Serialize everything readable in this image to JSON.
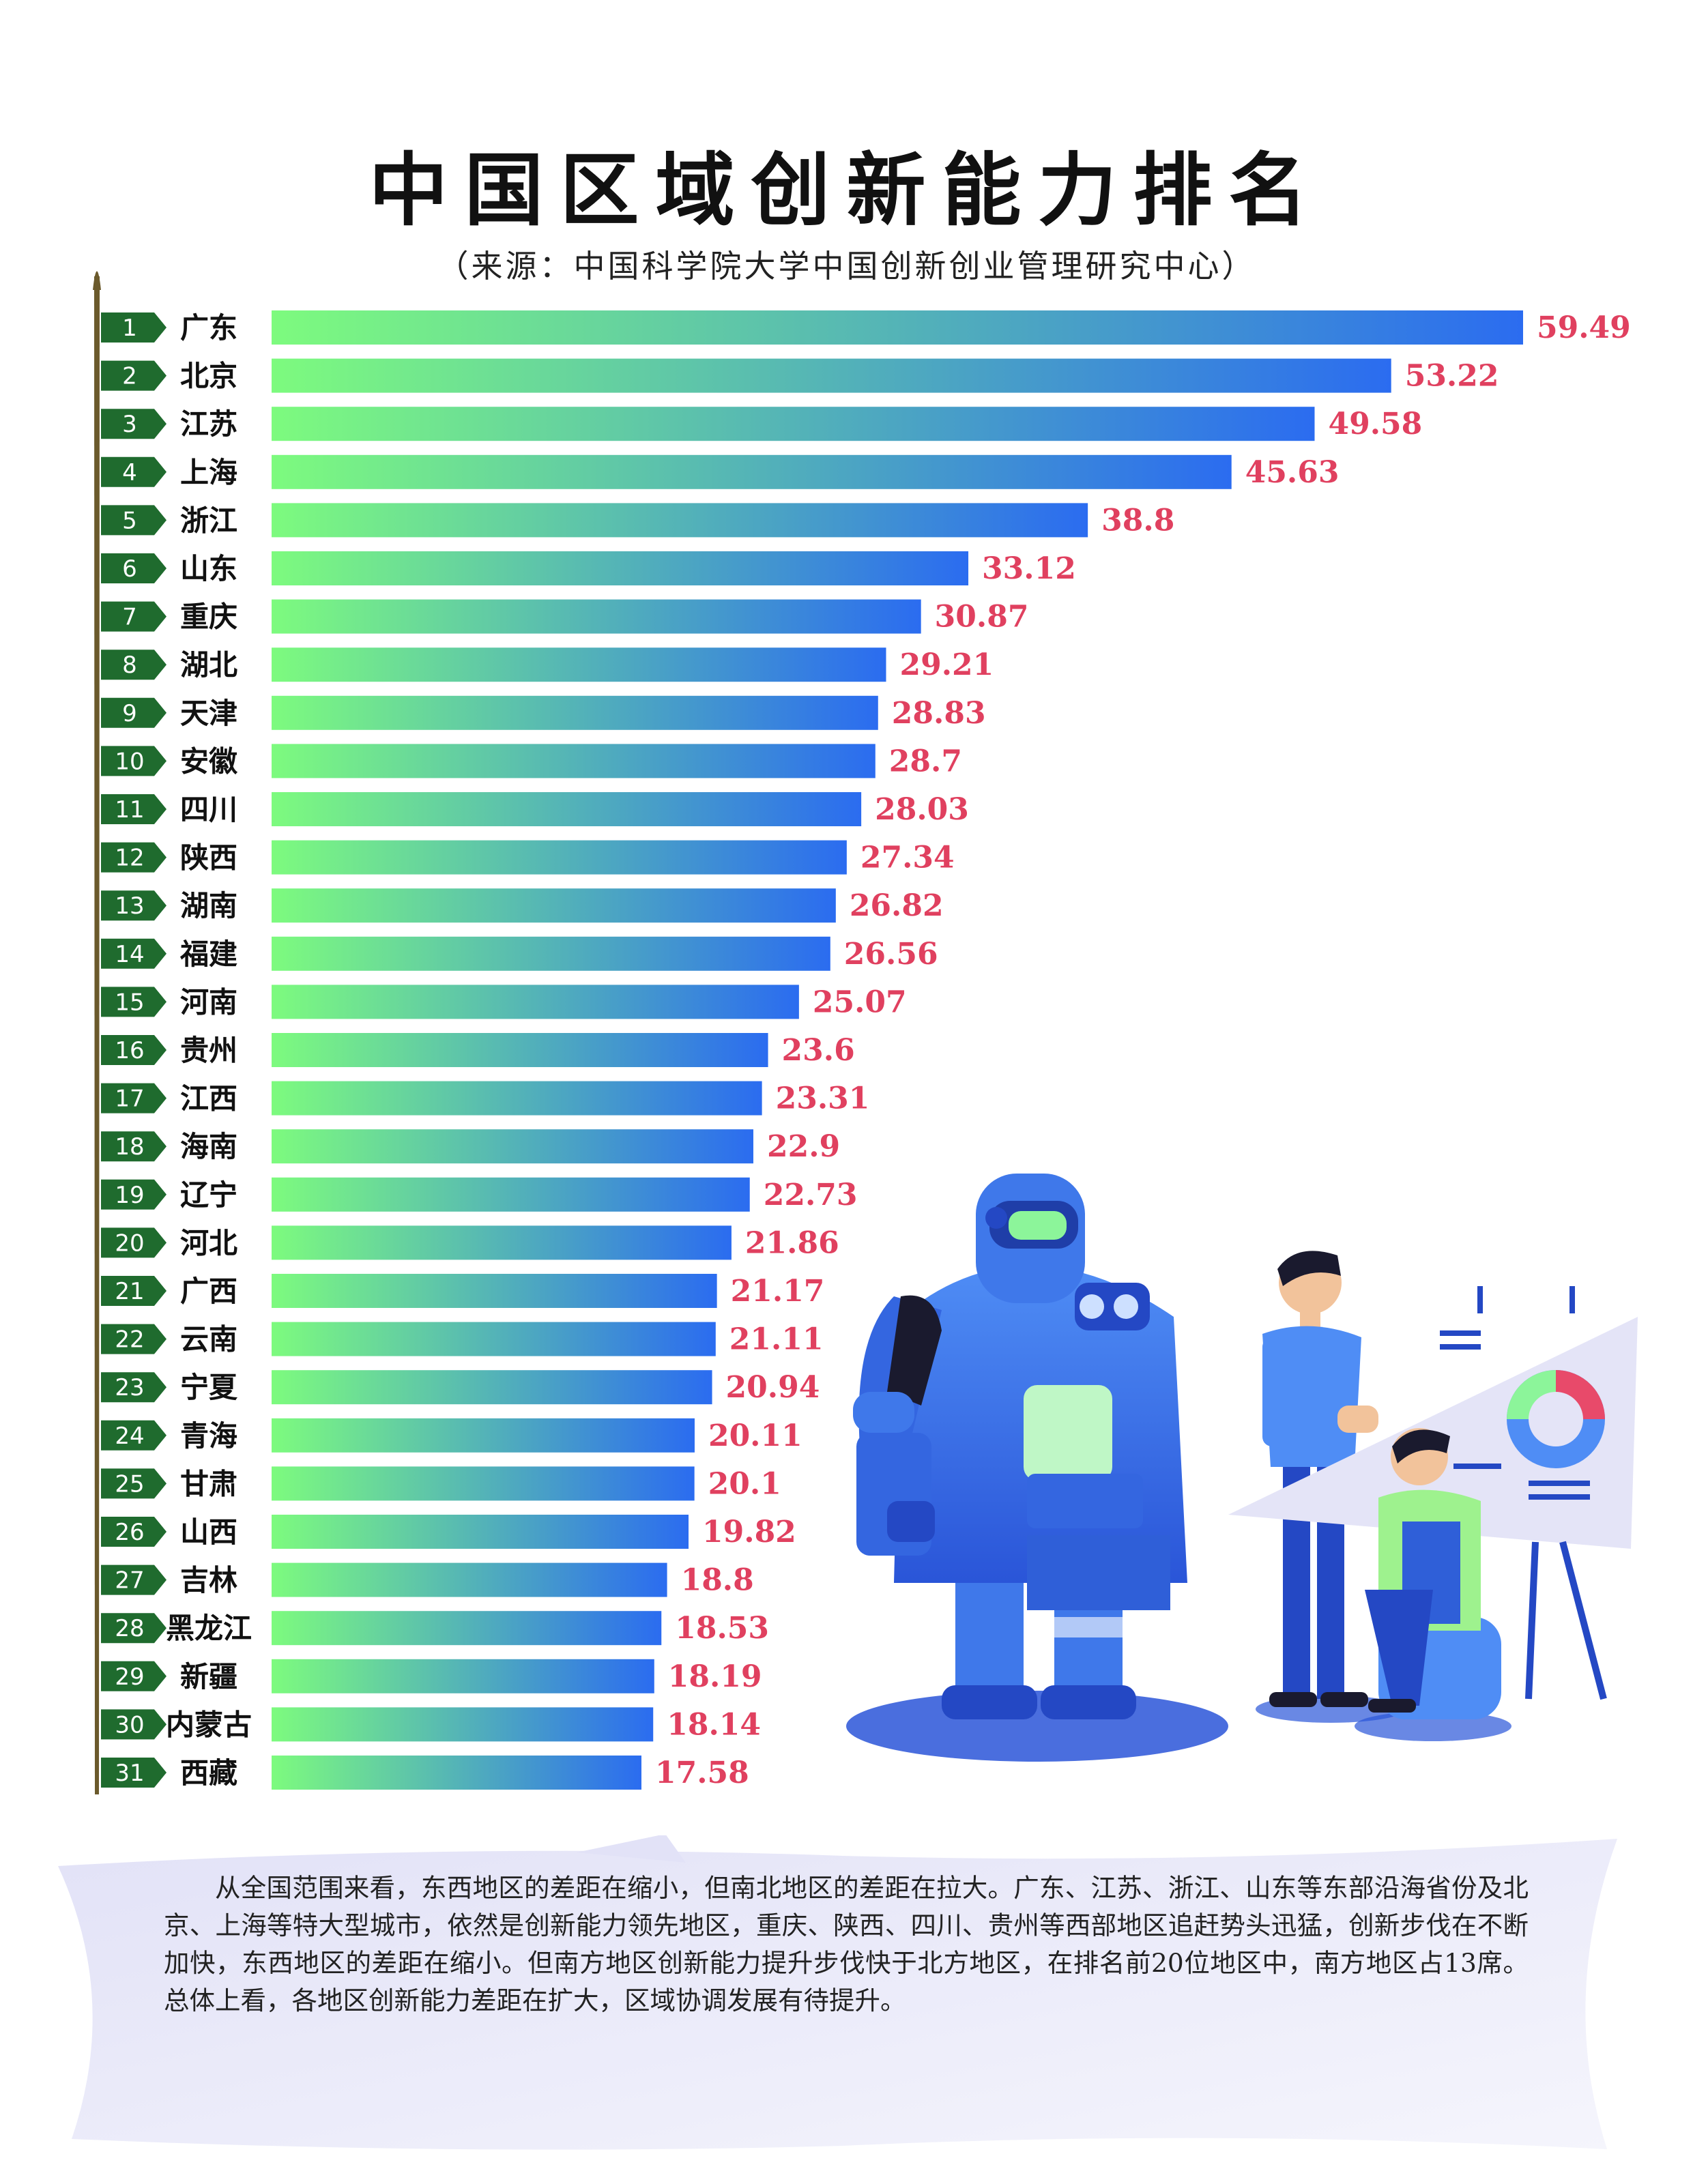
{
  "title": "中国区域创新能力排名",
  "subtitle": "（来源：中国科学院大学中国创新创业管理研究中心）",
  "colors": {
    "bar_start": "#7dfb7e",
    "bar_end": "#2b6cf0",
    "value_label": "#e0405f",
    "rank_badge": "#1f6b2e",
    "axis": "#6b5a2c"
  },
  "chart_data": {
    "type": "bar",
    "orientation": "horizontal",
    "title": "中国区域创新能力排名",
    "subtitle": "（来源：中国科学院大学中国创新创业管理研究中心）",
    "xlabel": "",
    "ylabel": "",
    "grid": false,
    "legend": "none",
    "ranks": [
      "1",
      "2",
      "3",
      "4",
      "5",
      "6",
      "7",
      "8",
      "9",
      "10",
      "11",
      "12",
      "13",
      "14",
      "15",
      "16",
      "17",
      "18",
      "19",
      "20",
      "21",
      "22",
      "23",
      "24",
      "25",
      "26",
      "27",
      "28",
      "29",
      "30",
      "31"
    ],
    "categories": [
      "广东",
      "北京",
      "江苏",
      "上海",
      "浙江",
      "山东",
      "重庆",
      "湖北",
      "天津",
      "安徽",
      "四川",
      "陕西",
      "湖南",
      "福建",
      "河南",
      "贵州",
      "江西",
      "海南",
      "辽宁",
      "河北",
      "广西",
      "云南",
      "宁夏",
      "青海",
      "甘肃",
      "山西",
      "吉林",
      "黑龙江",
      "新疆",
      "内蒙古",
      "西藏"
    ],
    "values": [
      59.49,
      53.22,
      49.58,
      45.63,
      38.8,
      33.12,
      30.87,
      29.21,
      28.83,
      28.7,
      28.03,
      27.34,
      26.82,
      26.56,
      25.07,
      23.6,
      23.31,
      22.9,
      22.73,
      21.86,
      21.17,
      21.11,
      20.94,
      20.11,
      20.1,
      19.82,
      18.8,
      18.53,
      18.19,
      18.14,
      17.58
    ],
    "value_labels": [
      "59.49",
      "53.22",
      "49.58",
      "45.63",
      "38.8",
      "33.12",
      "30.87",
      "29.21",
      "28.83",
      "28.7",
      "28.03",
      "27.34",
      "26.82",
      "26.56",
      "25.07",
      "23.6",
      "23.31",
      "22.9",
      "22.73",
      "21.86",
      "21.17",
      "21.11",
      "20.94",
      "20.11",
      "20.1",
      "19.82",
      "18.8",
      "18.53",
      "18.19",
      "18.14",
      "17.58"
    ]
  },
  "summary": "从全国范围来看，东西地区的差距在缩小，但南北地区的差距在拉大。广东、江苏、浙江、山东等东部沿海省份及北京、上海等特大型城市，依然是创新能力领先地区，重庆、陕西、四川、贵州等西部地区追赶势头迅猛，创新步伐在不断加快，东西地区的差距在缩小。但南方地区创新能力提升步伐快于北方地区，在排名前20位地区中，南方地区占13席。总体上看，各地区创新能力差距在扩大，区域协调发展有待提升。"
}
